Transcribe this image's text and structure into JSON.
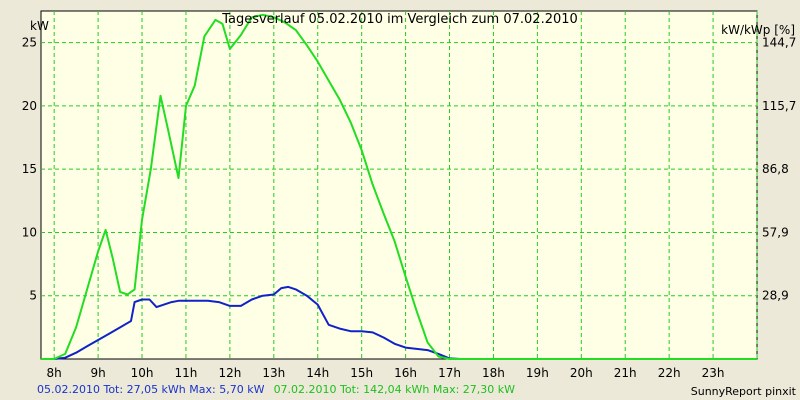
{
  "chart_data": {
    "type": "line",
    "title": "Tagesverlauf 05.02.2010 im Vergleich zum 07.02.2010",
    "ylabel": "kW",
    "y2label": "kW/kWp [%]",
    "x_ticks": [
      "8h",
      "9h",
      "10h",
      "11h",
      "12h",
      "13h",
      "14h",
      "15h",
      "16h",
      "17h",
      "18h",
      "19h",
      "20h",
      "21h",
      "22h",
      "23h"
    ],
    "y_ticks": [
      "5",
      "10",
      "15",
      "20",
      "25"
    ],
    "y2_ticks": [
      "28,9",
      "57,9",
      "86,8",
      "115,7",
      "144,7"
    ],
    "xlim": [
      7.7,
      24.0
    ],
    "ylim": [
      0,
      27.5
    ],
    "grid": true,
    "colors": {
      "background": "#ffffe6",
      "grid": "#22cc22",
      "page": "#ece9d8"
    },
    "series": [
      {
        "name": "05.02.2010",
        "color": "#1022c8",
        "x": [
          7.7,
          8.0,
          8.25,
          8.5,
          8.75,
          9.0,
          9.25,
          9.5,
          9.75,
          9.83,
          10.0,
          10.17,
          10.33,
          10.5,
          10.67,
          10.83,
          11.0,
          11.25,
          11.5,
          11.75,
          12.0,
          12.25,
          12.5,
          12.75,
          13.0,
          13.17,
          13.33,
          13.5,
          13.75,
          14.0,
          14.25,
          14.5,
          14.75,
          15.0,
          15.25,
          15.5,
          15.75,
          16.0,
          16.25,
          16.5,
          16.75,
          17.0,
          17.25,
          24.0
        ],
        "y": [
          0,
          0,
          0.1,
          0.5,
          1.0,
          1.5,
          2.0,
          2.5,
          3.0,
          4.5,
          4.7,
          4.7,
          4.1,
          4.3,
          4.5,
          4.6,
          4.6,
          4.6,
          4.6,
          4.5,
          4.2,
          4.2,
          4.7,
          5.0,
          5.1,
          5.6,
          5.7,
          5.5,
          5.0,
          4.3,
          2.7,
          2.4,
          2.2,
          2.2,
          2.1,
          1.7,
          1.2,
          0.9,
          0.8,
          0.7,
          0.4,
          0.05,
          0,
          0
        ]
      },
      {
        "name": "07.02.2010",
        "color": "#22dd22",
        "x": [
          7.7,
          8.0,
          8.25,
          8.5,
          8.75,
          9.0,
          9.17,
          9.33,
          9.5,
          9.67,
          9.83,
          10.0,
          10.2,
          10.42,
          10.6,
          10.83,
          11.0,
          11.2,
          11.42,
          11.67,
          11.83,
          12.0,
          12.25,
          12.5,
          12.75,
          13.0,
          13.25,
          13.5,
          13.75,
          14.0,
          14.25,
          14.5,
          14.75,
          15.0,
          15.25,
          15.5,
          15.75,
          16.0,
          16.25,
          16.5,
          16.75,
          17.0,
          17.25,
          24.0
        ],
        "y": [
          0,
          0,
          0.4,
          2.5,
          5.5,
          8.5,
          10.2,
          8.0,
          5.3,
          5.1,
          5.5,
          11.0,
          15.0,
          20.8,
          18.0,
          14.3,
          20.0,
          21.6,
          25.5,
          26.8,
          26.5,
          24.5,
          25.6,
          27.0,
          27.2,
          27.0,
          26.6,
          26.0,
          24.8,
          23.5,
          22.0,
          20.5,
          18.7,
          16.5,
          13.8,
          11.5,
          9.3,
          6.5,
          3.8,
          1.3,
          0.2,
          0,
          0,
          0
        ]
      }
    ],
    "footer": {
      "series1_text": "05.02.2010 Tot: 27,05 kWh Max: 5,70 kW",
      "series2_text": "07.02.2010 Tot: 142,04 kWh Max: 27,30 kW",
      "credit": "SunnyReport pinxit"
    }
  }
}
